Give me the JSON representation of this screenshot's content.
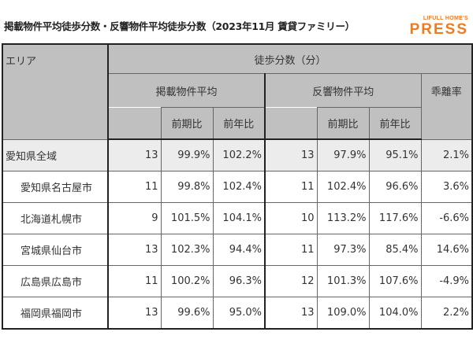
{
  "title": "掲載物件平均徒歩分数・反響物件平均徒歩分数（2023年11月 賃貸ファミリー）",
  "logo": {
    "top": "LIFULL HOME'S",
    "main": "PRESS",
    "color": "#f07a1e"
  },
  "table": {
    "headers": {
      "area": "エリア",
      "group": "徒歩分数（分）",
      "listed": "掲載物件平均",
      "response": "反響物件平均",
      "divergence": "乖離率",
      "prev_period": "前期比",
      "prev_year": "前年比"
    },
    "rows": [
      {
        "area": "愛知県全域",
        "listed": "13",
        "listed_pp": "99.9%",
        "listed_py": "102.2%",
        "resp": "13",
        "resp_pp": "97.9%",
        "resp_py": "95.1%",
        "div": "2.1%"
      },
      {
        "area": "愛知県名古屋市",
        "listed": "11",
        "listed_pp": "99.8%",
        "listed_py": "102.4%",
        "resp": "11",
        "resp_pp": "102.4%",
        "resp_py": "96.6%",
        "div": "3.6%"
      },
      {
        "area": "北海道札幌市",
        "listed": "9",
        "listed_pp": "101.5%",
        "listed_py": "104.1%",
        "resp": "10",
        "resp_pp": "113.2%",
        "resp_py": "117.6%",
        "div": "-6.6%"
      },
      {
        "area": "宮城県仙台市",
        "listed": "13",
        "listed_pp": "102.3%",
        "listed_py": "94.4%",
        "resp": "11",
        "resp_pp": "97.3%",
        "resp_py": "85.4%",
        "div": "14.6%"
      },
      {
        "area": "広島県広島市",
        "listed": "11",
        "listed_pp": "100.2%",
        "listed_py": "96.3%",
        "resp": "12",
        "resp_pp": "101.3%",
        "resp_py": "107.6%",
        "div": "-4.9%"
      },
      {
        "area": "福岡県福岡市",
        "listed": "13",
        "listed_pp": "99.6%",
        "listed_py": "95.0%",
        "resp": "13",
        "resp_pp": "109.0%",
        "resp_py": "104.0%",
        "div": "2.2%"
      }
    ]
  }
}
